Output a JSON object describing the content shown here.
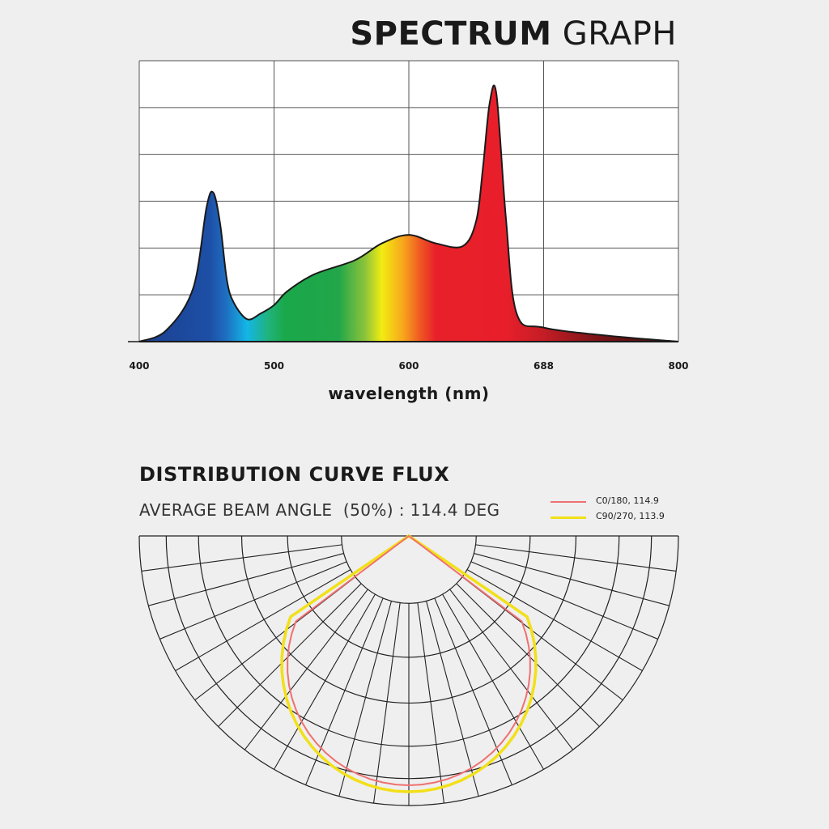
{
  "colors": {
    "background": "#efefef",
    "grid": "#555555",
    "c0_line": "#f07070",
    "c90_line": "#f2e018"
  },
  "spectrum": {
    "title_bold": "SPECTRUM",
    "title_light": "GRAPH",
    "xlabel": "wavelength (nm)"
  },
  "distribution": {
    "title": "DISTRIBUTION CURVE FLUX",
    "beam_angle_text": "AVERAGE BEAM ANGLE  (50%) : 114.4 DEG",
    "legend": [
      {
        "label": "C0/180, 114.9",
        "color": "#f07070"
      },
      {
        "label": "C90/270, 113.9",
        "color": "#f2e018"
      }
    ]
  },
  "chart_data": [
    {
      "type": "area",
      "title": "SPECTRUM GRAPH",
      "xlabel": "wavelength (nm)",
      "ylabel": "",
      "x_tick_labels": [
        "400",
        "500",
        "600",
        "688",
        "800"
      ],
      "xlim": [
        400,
        800
      ],
      "ylim": [
        0,
        100
      ],
      "grid": true,
      "series": [
        {
          "x": [
            400,
            420,
            440,
            450,
            455,
            460,
            465,
            470,
            480,
            490,
            500,
            510,
            530,
            560,
            580,
            600,
            620,
            640,
            650,
            655,
            660,
            665,
            672,
            680,
            700,
            750,
            800
          ],
          "y": [
            0,
            4,
            19,
            48,
            53,
            42,
            22,
            14,
            8,
            10,
            13,
            18,
            24,
            29,
            35,
            38,
            35,
            34,
            43,
            62,
            85,
            88,
            44,
            10,
            5,
            2,
            0
          ]
        }
      ]
    },
    {
      "type": "polar",
      "title": "DISTRIBUTION CURVE FLUX",
      "angle_range_deg": [
        -90,
        90
      ],
      "series": [
        {
          "name": "C0/180, 114.9",
          "beam_angle_deg": 114.9
        },
        {
          "name": "C90/270, 113.9",
          "beam_angle_deg": 113.9
        }
      ]
    }
  ]
}
